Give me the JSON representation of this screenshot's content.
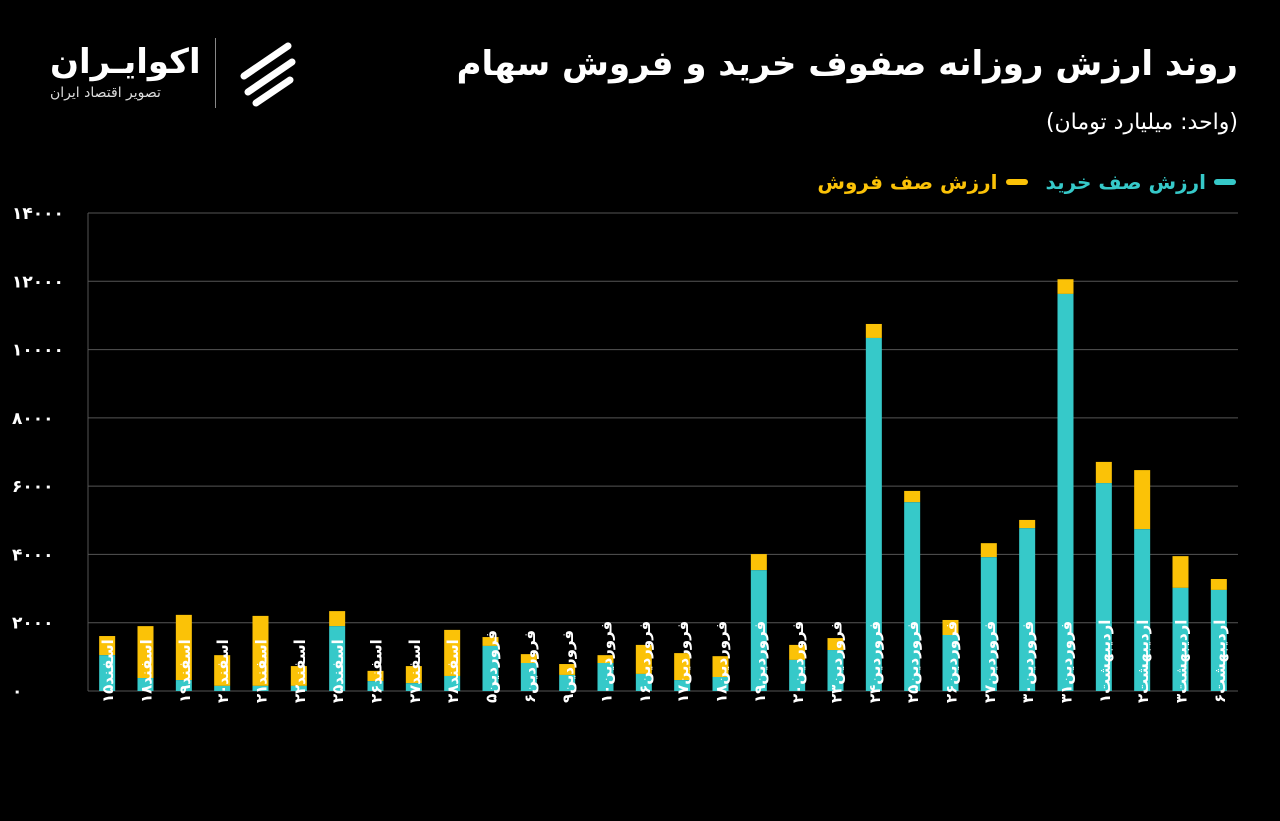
{
  "title": "روند ارزش روزانه صفوف خرید و فروش سهام",
  "subtitle": "(واحد: میلیارد تومان)",
  "logo": {
    "name": "اکوایـران",
    "tagline": "تصویر اقتصاد ایران"
  },
  "colors": {
    "buy": "#36c9c9",
    "sell": "#fbc207",
    "grid": "#555555"
  },
  "chart_data": {
    "type": "bar",
    "stacked": true,
    "title": "روند ارزش روزانه صفوف خرید و فروش سهام",
    "ylabel": "میلیارد تومان",
    "ylim": [
      0,
      14000
    ],
    "yticks": [
      0,
      2000,
      4000,
      6000,
      8000,
      10000,
      12000,
      14000
    ],
    "ytick_labels": [
      "۰",
      "۲۰۰۰",
      "۴۰۰۰",
      "۶۰۰۰",
      "۸۰۰۰",
      "۱۰۰۰۰",
      "۱۲۰۰۰",
      "۱۴۰۰۰"
    ],
    "legend_position": "top-right",
    "categories": [
      "اسفند۱۵",
      "اسفند۱۸",
      "اسفند۱۹",
      "اسفند۲۰",
      "اسفند۲۱",
      "اسفند۲۲",
      "اسفند۲۵",
      "اسفند۲۶",
      "اسفند۲۷",
      "اسفند۲۸",
      "فروردین۵",
      "فروردین۶",
      "فروردین۹",
      "فروردین۱۰",
      "فروردین۱۶",
      "فروردین۱۷",
      "فروردین۱۸",
      "فروردین۱۹",
      "فروردین۲۰",
      "فروردین۲۳",
      "فروردین۲۴",
      "فروردین۲۵",
      "فروردین۲۶",
      "فروردین۲۷",
      "فروردین۳۰",
      "فروردین۳۱",
      "اردیبهشت۱",
      "اردیبهشت۲",
      "اردیبهشت۳",
      "اردیبهشت۶"
    ],
    "series": [
      {
        "name": "ارزش صف خرید",
        "values": [
          1050,
          380,
          320,
          150,
          150,
          150,
          1900,
          290,
          230,
          440,
          1320,
          820,
          470,
          820,
          500,
          320,
          410,
          3540,
          910,
          1200,
          10340,
          5530,
          1640,
          3920,
          4770,
          11630,
          6090,
          4740,
          3020,
          2960
        ]
      },
      {
        "name": "ارزش صف فروش",
        "values": [
          560,
          1520,
          1910,
          900,
          2050,
          580,
          440,
          300,
          500,
          1350,
          260,
          260,
          320,
          230,
          850,
          790,
          610,
          470,
          440,
          350,
          410,
          330,
          440,
          410,
          240,
          430,
          620,
          1730,
          930,
          320
        ]
      }
    ]
  }
}
